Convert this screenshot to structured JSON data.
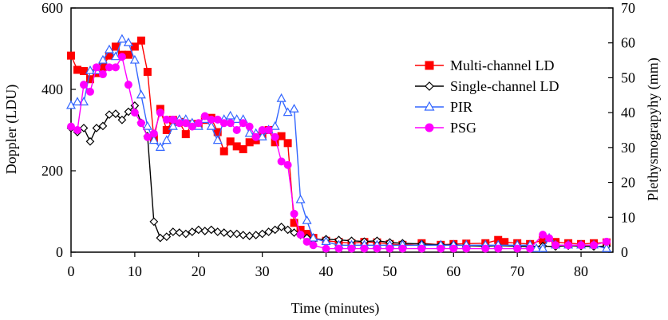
{
  "chart_data": {
    "type": "line",
    "title": "",
    "xlabel": "Time (minutes)",
    "ylabel": "Doppler (LDU)",
    "y2label": "Plethysmograpyhy (mm)",
    "xlim": [
      0,
      85
    ],
    "ylim": [
      0,
      600
    ],
    "y2lim": [
      0,
      70
    ],
    "xticks": [
      0,
      10,
      20,
      30,
      40,
      50,
      60,
      70,
      80
    ],
    "yticks": [
      0,
      200,
      400,
      600
    ],
    "y2ticks": [
      0,
      10,
      20,
      30,
      40,
      50,
      60,
      70
    ],
    "series": [
      {
        "name": "Multi-channel LD",
        "axis": "left",
        "color": "#ff0000",
        "marker": "square",
        "x": [
          0,
          1,
          2,
          3,
          4,
          5,
          6,
          7,
          8,
          9,
          10,
          11,
          12,
          13,
          14,
          15,
          16,
          17,
          18,
          19,
          20,
          21,
          22,
          23,
          24,
          25,
          26,
          27,
          28,
          29,
          30,
          31,
          32,
          33,
          34,
          35,
          36,
          37,
          38,
          40,
          42,
          44,
          46,
          48,
          50,
          52,
          55,
          58,
          60,
          62,
          65,
          67,
          68,
          70,
          72,
          74,
          76,
          78,
          80,
          82,
          84
        ],
        "values": [
          483,
          448,
          445,
          425,
          440,
          455,
          483,
          505,
          485,
          485,
          505,
          520,
          443,
          280,
          352,
          300,
          325,
          320,
          290,
          315,
          315,
          325,
          330,
          295,
          248,
          272,
          260,
          253,
          270,
          275,
          288,
          300,
          270,
          285,
          268,
          72,
          55,
          45,
          35,
          28,
          25,
          22,
          25,
          24,
          20,
          18,
          22,
          18,
          20,
          21,
          22,
          30,
          25,
          22,
          20,
          30,
          25,
          22,
          20,
          22,
          24
        ]
      },
      {
        "name": "Single-channel LD",
        "axis": "left",
        "color": "#000000",
        "marker": "diamond",
        "x": [
          0,
          1,
          2,
          3,
          4,
          5,
          6,
          7,
          8,
          9,
          10,
          11,
          12,
          13,
          14,
          15,
          16,
          17,
          18,
          19,
          20,
          21,
          22,
          23,
          24,
          25,
          26,
          27,
          28,
          29,
          30,
          31,
          32,
          33,
          34,
          35,
          36,
          37,
          38,
          40,
          42,
          44,
          46,
          48,
          50,
          52,
          55,
          58,
          60,
          62,
          65,
          67,
          70,
          72,
          74,
          76,
          78,
          80,
          82,
          84
        ],
        "values": [
          305,
          295,
          305,
          272,
          305,
          310,
          338,
          340,
          325,
          345,
          360,
          318,
          285,
          75,
          35,
          38,
          50,
          48,
          45,
          50,
          55,
          52,
          55,
          50,
          48,
          45,
          45,
          42,
          40,
          42,
          45,
          50,
          55,
          62,
          55,
          48,
          42,
          35,
          30,
          32,
          30,
          28,
          26,
          28,
          24,
          22,
          20,
          18,
          18,
          16,
          15,
          16,
          15,
          14,
          15,
          14,
          16,
          15,
          14,
          15
        ]
      },
      {
        "name": "PIR",
        "axis": "right",
        "color": "#3366ff",
        "marker": "triangle",
        "x": [
          0,
          1,
          2,
          3,
          4,
          5,
          6,
          7,
          8,
          9,
          10,
          11,
          12,
          13,
          14,
          15,
          16,
          17,
          18,
          19,
          20,
          21,
          22,
          23,
          24,
          25,
          26,
          27,
          28,
          29,
          30,
          31,
          32,
          33,
          34,
          35,
          36,
          37,
          38,
          40,
          42,
          44,
          46,
          48,
          50,
          52,
          55,
          58,
          60,
          62,
          65,
          67,
          70,
          72,
          73,
          74,
          75,
          76,
          78,
          80,
          82,
          84
        ],
        "values": [
          42,
          43,
          43,
          52,
          52,
          55,
          58,
          56,
          61,
          60,
          55,
          45,
          36,
          32,
          30,
          32,
          36,
          38,
          38,
          37,
          36,
          38,
          36,
          32,
          38,
          39,
          38,
          38,
          34,
          34,
          33,
          35,
          36,
          44,
          40,
          41,
          15,
          9,
          4,
          3,
          2,
          2,
          2,
          2,
          2,
          2,
          2,
          2,
          2,
          2,
          2,
          2,
          2,
          2,
          1,
          1,
          4,
          2,
          2,
          2,
          2,
          1
        ]
      },
      {
        "name": "PSG",
        "axis": "right",
        "color": "#ff00ff",
        "marker": "circle",
        "x": [
          0,
          1,
          2,
          3,
          4,
          5,
          6,
          7,
          8,
          9,
          10,
          11,
          12,
          13,
          14,
          15,
          16,
          17,
          18,
          19,
          20,
          21,
          22,
          23,
          24,
          25,
          26,
          27,
          28,
          29,
          30,
          31,
          32,
          33,
          34,
          35,
          36,
          37,
          38,
          40,
          42,
          44,
          46,
          48,
          50,
          52,
          55,
          58,
          60,
          62,
          65,
          67,
          70,
          72,
          74,
          75,
          76,
          78,
          80,
          82,
          84
        ],
        "values": [
          36,
          35,
          48,
          46,
          53,
          51,
          53,
          53,
          56,
          48,
          40,
          37,
          33,
          34,
          40,
          38,
          38,
          37,
          37,
          36,
          37,
          39,
          38,
          38,
          37,
          37,
          35,
          37,
          36,
          33,
          35,
          35,
          33,
          26,
          25,
          11,
          5,
          3,
          2,
          1,
          1,
          1,
          1,
          1,
          1,
          1,
          1,
          1,
          1,
          1,
          1,
          1,
          1,
          1,
          5,
          4,
          2,
          2,
          2,
          2,
          3
        ]
      }
    ]
  }
}
